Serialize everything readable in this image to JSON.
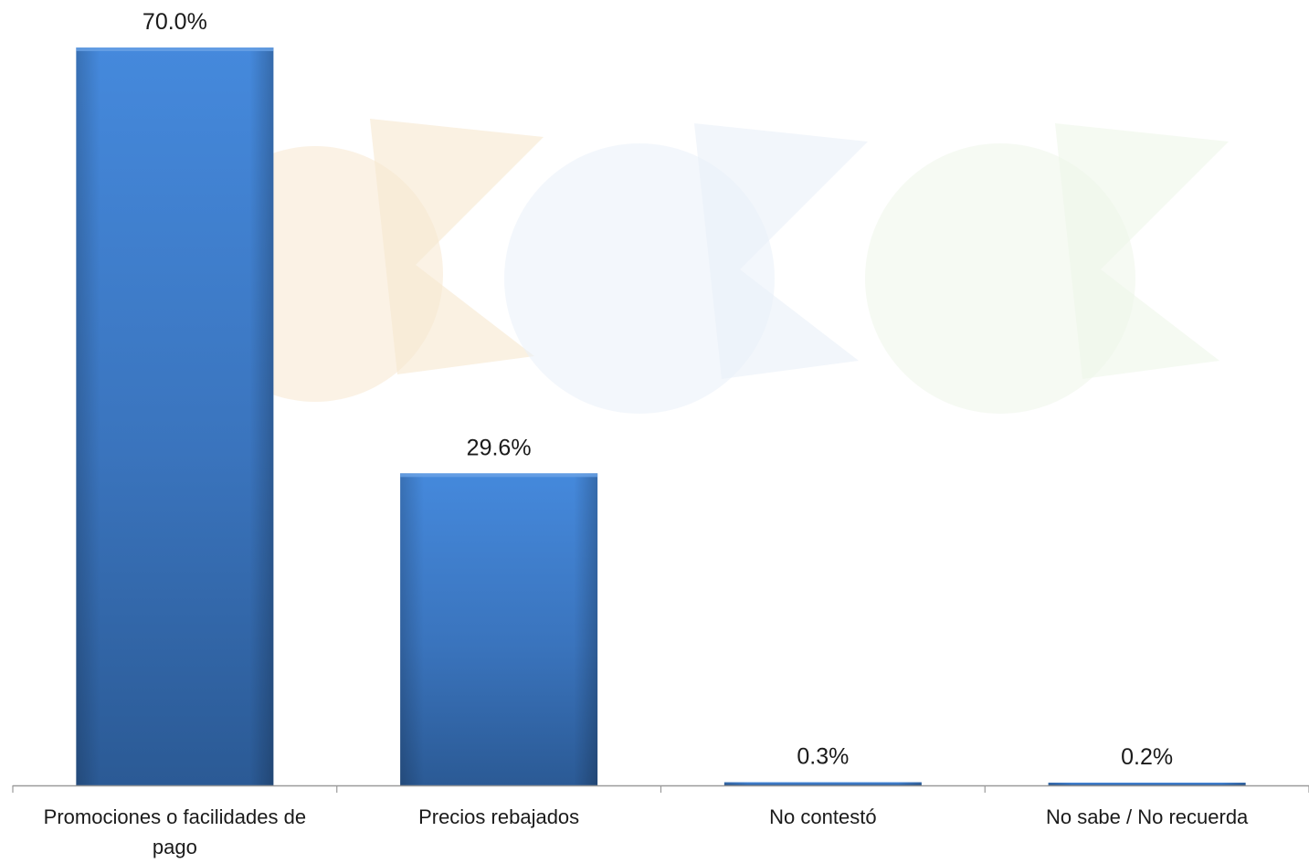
{
  "chart_data": {
    "type": "bar",
    "categories": [
      [
        "Promociones o facilidades de",
        "pago"
      ],
      [
        "Precios rebajados"
      ],
      [
        "No contestó"
      ],
      [
        "No sabe / No recuerda"
      ]
    ],
    "values": [
      70.0,
      29.6,
      0.3,
      0.2
    ],
    "value_labels": [
      "70.0%",
      "29.6%",
      "0.3%",
      "0.2%"
    ],
    "unit": "%",
    "ylim": [
      0,
      70
    ],
    "grid": false,
    "legend": "none",
    "bar_color": "#3a78c6",
    "bar_color_dark": "#2e5f9e",
    "axis_color": "#9a9a9a",
    "watermark_colors": [
      "#f7e7cf",
      "#e9f0f9",
      "#eef6ea"
    ]
  }
}
